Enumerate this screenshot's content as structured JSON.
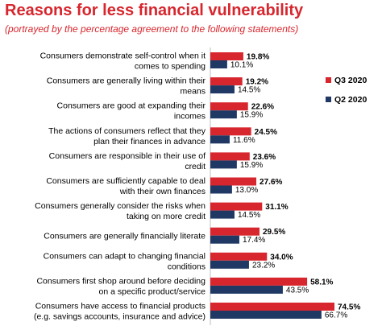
{
  "header": {
    "title": "Reasons for less financial vulnerability",
    "subtitle": "(portrayed by the percentage agreement to the following statements)"
  },
  "chart_data": {
    "type": "bar",
    "orientation": "horizontal",
    "categories": [
      [
        "Consumers demonstrate self-control when it",
        "comes to spending"
      ],
      [
        "Consumers are generally living within their",
        "means"
      ],
      [
        "Consumers are good at expanding their",
        "incomes"
      ],
      [
        "The actions of consumers reflect that they",
        "plan their finances in advance"
      ],
      [
        "Consumers are responsible in their use of",
        "credit"
      ],
      [
        "Consumers are sufficiently capable to deal",
        "with their own finances"
      ],
      [
        "Consumers generally consider the risks when",
        "taking on more credit"
      ],
      [
        "Consumers are generally financially literate"
      ],
      [
        "Consumers can adapt to changing financial",
        "conditions"
      ],
      [
        "Consumers first shop around before deciding",
        "on a specific product/service"
      ],
      [
        "Consumers have access to financial products",
        "(e.g. savings accounts, insurance and advice)"
      ]
    ],
    "series": [
      {
        "name": "Q3 2020",
        "color": "#d7262d",
        "values": [
          19.8,
          19.2,
          22.6,
          24.5,
          23.6,
          27.6,
          31.1,
          29.5,
          34.0,
          58.1,
          74.5
        ],
        "labels": [
          "19.8%",
          "19.2%",
          "22.6%",
          "24.5%",
          "23.6%",
          "27.6%",
          "31.1%",
          "29.5%",
          "34.0%",
          "58.1%",
          "74.5%"
        ]
      },
      {
        "name": "Q2 2020",
        "color": "#1f3864",
        "values": [
          10.1,
          14.5,
          15.9,
          11.6,
          15.9,
          13.0,
          14.5,
          17.4,
          23.2,
          43.5,
          66.7
        ],
        "labels": [
          "10.1%",
          "14.5%",
          "15.9%",
          "11.6%",
          "15.9%",
          "13.0%",
          "14.5%",
          "17.4%",
          "23.2%",
          "43.5%",
          "66.7%"
        ]
      }
    ],
    "xlim": [
      0,
      80
    ],
    "grid": false,
    "legend_position": "right"
  }
}
